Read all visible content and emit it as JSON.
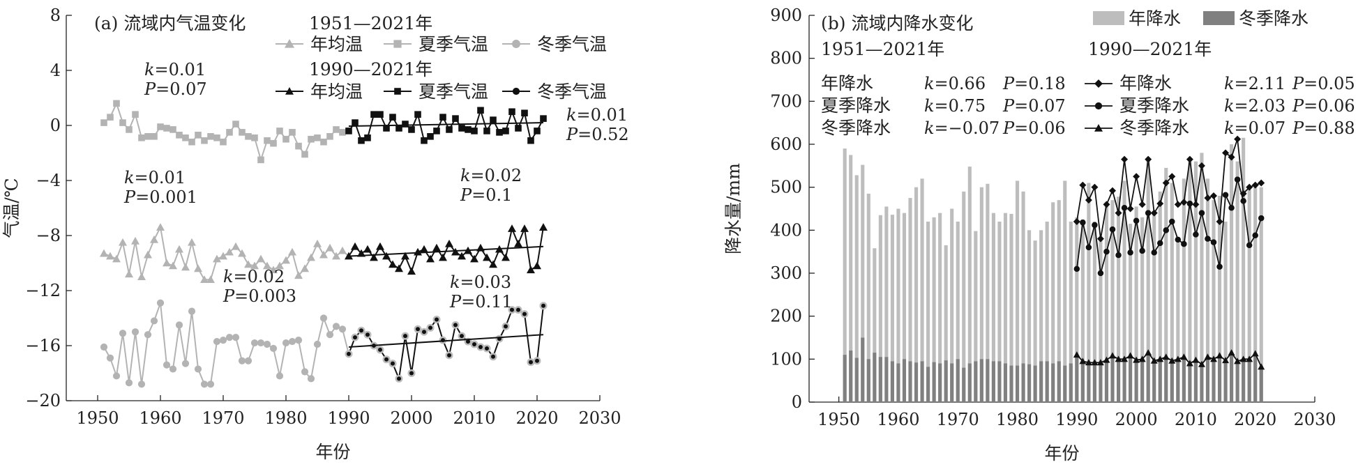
{
  "chart_data": [
    {
      "type": "line",
      "title": "(a) 流域内气温变化",
      "xlabel": "年份",
      "ylabel": "气温/℃",
      "xlim": [
        1945,
        2030
      ],
      "ylim": [
        -20,
        8
      ],
      "xticks": [
        1950,
        1960,
        1970,
        1980,
        1990,
        2000,
        2010,
        2020,
        2030
      ],
      "yticks": [
        8,
        4,
        0,
        -4,
        -8,
        -12,
        -16,
        -20
      ],
      "ytick_labels": [
        "8",
        "4",
        "0",
        "−4",
        "−8",
        "−12",
        "−16",
        "−20"
      ],
      "legend_period1": "1951—2021年",
      "legend_period2": "1990—2021年",
      "colors": {
        "period1": "#b3b3b3",
        "period2": "#111111",
        "trend": "#111111"
      },
      "series": [
        {
          "name": "年均温",
          "marker": "triangle",
          "x": [
            1951,
            1952,
            1953,
            1954,
            1955,
            1956,
            1957,
            1958,
            1959,
            1960,
            1961,
            1962,
            1963,
            1964,
            1965,
            1966,
            1967,
            1968,
            1969,
            1970,
            1971,
            1972,
            1973,
            1974,
            1975,
            1976,
            1977,
            1978,
            1979,
            1980,
            1981,
            1982,
            1983,
            1984,
            1985,
            1986,
            1987,
            1988,
            1989,
            1990,
            1991,
            1992,
            1993,
            1994,
            1995,
            1996,
            1997,
            1998,
            1999,
            2000,
            2001,
            2002,
            2003,
            2004,
            2005,
            2006,
            2007,
            2008,
            2009,
            2010,
            2011,
            2012,
            2013,
            2014,
            2015,
            2016,
            2017,
            2018,
            2019,
            2020,
            2021
          ],
          "values": [
            -9.3,
            -9.5,
            -9.7,
            -8.5,
            -10.8,
            -8.4,
            -11,
            -9.4,
            -8.3,
            -7.4,
            -10,
            -10.2,
            -9,
            -10.3,
            -8.5,
            -10.4,
            -11.2,
            -11.2,
            -9.7,
            -9.5,
            -9.2,
            -8.8,
            -9.3,
            -10.1,
            -10.2,
            -9.7,
            -10.2,
            -10.5,
            -10.2,
            -9.8,
            -9.2,
            -10.9,
            -10.4,
            -9.6,
            -8.6,
            -9.4,
            -8.9,
            -9.5,
            -9.1,
            -9.5,
            -8.8,
            -9.3,
            -9,
            -9.6,
            -8.8,
            -9.5,
            -10.1,
            -10.4,
            -9.5,
            -10.6,
            -9.2,
            -9,
            -9.7,
            -8.9,
            -9.6,
            -8.6,
            -9.2,
            -9.5,
            -9.1,
            -9.7,
            -8.9,
            -9.6,
            -10.1,
            -9,
            -9.6,
            -7.5,
            -8.6,
            -7.5,
            -10.5,
            -10.2,
            -7.4
          ]
        },
        {
          "name": "夏季气温",
          "marker": "square",
          "x": [
            1951,
            1952,
            1953,
            1954,
            1955,
            1956,
            1957,
            1958,
            1959,
            1960,
            1961,
            1962,
            1963,
            1964,
            1965,
            1966,
            1967,
            1968,
            1969,
            1970,
            1971,
            1972,
            1973,
            1974,
            1975,
            1976,
            1977,
            1978,
            1979,
            1980,
            1981,
            1982,
            1983,
            1984,
            1985,
            1986,
            1987,
            1988,
            1989,
            1990,
            1991,
            1992,
            1993,
            1994,
            1995,
            1996,
            1997,
            1998,
            1999,
            2000,
            2001,
            2002,
            2003,
            2004,
            2005,
            2006,
            2007,
            2008,
            2009,
            2010,
            2011,
            2012,
            2013,
            2014,
            2015,
            2016,
            2017,
            2018,
            2019,
            2020,
            2021
          ],
          "values": [
            0.2,
            0.6,
            1.6,
            0.2,
            -0.3,
            0.8,
            -0.9,
            -0.8,
            -0.8,
            -0.1,
            -0.2,
            -0.3,
            -0.7,
            -0.9,
            -1.2,
            -0.7,
            -1.1,
            -0.8,
            -0.9,
            -1.2,
            -0.5,
            0.1,
            -0.5,
            -0.8,
            -0.9,
            -2.5,
            -1.1,
            -1.3,
            -0.4,
            -1,
            -0.5,
            -1.5,
            -2.1,
            -1.0,
            -0.9,
            -1.2,
            -0.8,
            -0.3,
            -0.5,
            -0.4,
            0.2,
            -1.1,
            -0.9,
            0.8,
            0.8,
            -0.2,
            0.6,
            -0.2,
            0.1,
            -0.3,
            0.8,
            -1.1,
            -0.8,
            -0.4,
            0.6,
            -0.3,
            0.5,
            -0.2,
            -0.3,
            -0.4,
            1.1,
            -0.4,
            0.4,
            -0.5,
            -0.4,
            1,
            -0.2,
            0.9,
            -1.1,
            -0.4,
            0.5
          ]
        },
        {
          "name": "冬季气温",
          "marker": "circle",
          "x": [
            1951,
            1952,
            1953,
            1954,
            1955,
            1956,
            1957,
            1958,
            1959,
            1960,
            1961,
            1962,
            1963,
            1964,
            1965,
            1966,
            1967,
            1968,
            1969,
            1970,
            1971,
            1972,
            1973,
            1974,
            1975,
            1976,
            1977,
            1978,
            1979,
            1980,
            1981,
            1982,
            1983,
            1984,
            1985,
            1986,
            1987,
            1988,
            1989,
            1990,
            1991,
            1992,
            1993,
            1994,
            1995,
            1996,
            1997,
            1998,
            1999,
            2000,
            2001,
            2002,
            2003,
            2004,
            2005,
            2006,
            2007,
            2008,
            2009,
            2010,
            2011,
            2012,
            2013,
            2014,
            2015,
            2016,
            2017,
            2018,
            2019,
            2020,
            2021
          ],
          "values": [
            -16.1,
            -16.9,
            -18.2,
            -15.1,
            -18.7,
            -15,
            -18.8,
            -15.2,
            -14.2,
            -12.9,
            -17.4,
            -17.7,
            -14.5,
            -17.3,
            -13.5,
            -17.7,
            -18.8,
            -18.8,
            -15.7,
            -15.6,
            -15.4,
            -15.4,
            -17.1,
            -17.1,
            -15.8,
            -15.8,
            -15.9,
            -16.2,
            -18.2,
            -15.8,
            -15.7,
            -15.6,
            -17.9,
            -18.4,
            -15.9,
            -14,
            -15.2,
            -14.6,
            -14.8,
            -16.6,
            -15.4,
            -14.9,
            -15.2,
            -16,
            -16.3,
            -17,
            -17.3,
            -18.4,
            -15.3,
            -18,
            -14.8,
            -15,
            -14.7,
            -14.1,
            -15.6,
            -16.7,
            -14.5,
            -15.3,
            -15.7,
            -15.9,
            -16.1,
            -16.2,
            -16.8,
            -15.5,
            -14.6,
            -13.4,
            -13.4,
            -13.7,
            -17.2,
            -17.1,
            -13.1
          ]
        }
      ],
      "trend_lines": [
        {
          "x": [
            1990,
            2021
          ],
          "y": [
            -0.05,
            0.2
          ]
        },
        {
          "x": [
            1990,
            2021
          ],
          "y": [
            -9.5,
            -8.8
          ]
        },
        {
          "x": [
            1990,
            2021
          ],
          "y": [
            -16.1,
            -15.2
          ]
        }
      ],
      "annotations": [
        {
          "k_label": "k",
          "k_text": "=0.01",
          "p_label": "P",
          "p_text": "=0.07"
        },
        {
          "k_label": "k",
          "k_text": "=0.01",
          "p_label": "P",
          "p_text": "=0.52"
        },
        {
          "k_label": "k",
          "k_text": "=0.01",
          "p_label": "P",
          "p_text": "=0.001"
        },
        {
          "k_label": "k",
          "k_text": "=0.02",
          "p_label": "P",
          "p_text": "=0.1"
        },
        {
          "k_label": "k",
          "k_text": "=0.02",
          "p_label": "P",
          "p_text": "=0.003"
        },
        {
          "k_label": "k",
          "k_text": "=0.03",
          "p_label": "P",
          "p_text": "=0.11"
        }
      ]
    },
    {
      "type": "bar",
      "title": "(b) 流域内降水变化",
      "xlabel": "年份",
      "ylabel": "降水量/mm",
      "xlim": [
        1945,
        2030
      ],
      "ylim": [
        0,
        900
      ],
      "xticks": [
        1950,
        1960,
        1970,
        1980,
        1990,
        2000,
        2010,
        2020,
        2030
      ],
      "yticks": [
        0,
        100,
        200,
        300,
        400,
        500,
        600,
        700,
        800,
        900
      ],
      "legend_period1": "1951—2021年",
      "legend_period2": "1990—2021年",
      "colors": {
        "annual_bar": "#bdbdbd",
        "winter_bar": "#808080",
        "line": "#111111"
      },
      "bar_legend": [
        "年降水",
        "冬季降水"
      ],
      "years": [
        1951,
        1952,
        1953,
        1954,
        1955,
        1956,
        1957,
        1958,
        1959,
        1960,
        1961,
        1962,
        1963,
        1964,
        1965,
        1966,
        1967,
        1968,
        1969,
        1970,
        1971,
        1972,
        1973,
        1974,
        1975,
        1976,
        1977,
        1978,
        1979,
        1980,
        1981,
        1982,
        1983,
        1984,
        1985,
        1986,
        1987,
        1988,
        1989,
        1990,
        1991,
        1992,
        1993,
        1994,
        1995,
        1996,
        1997,
        1998,
        1999,
        2000,
        2001,
        2002,
        2003,
        2004,
        2005,
        2006,
        2007,
        2008,
        2009,
        2010,
        2011,
        2012,
        2013,
        2014,
        2015,
        2016,
        2017,
        2018,
        2019,
        2020,
        2021
      ],
      "annual_precip": [
        590,
        575,
        528,
        552,
        485,
        358,
        435,
        455,
        436,
        450,
        440,
        475,
        500,
        520,
        420,
        430,
        440,
        365,
        450,
        420,
        490,
        548,
        398,
        500,
        508,
        440,
        420,
        440,
        438,
        515,
        490,
        400,
        376,
        400,
        420,
        465,
        470,
        515,
        420,
        430,
        425,
        510,
        420,
        385,
        460,
        470,
        478,
        515,
        415,
        455,
        430,
        565,
        440,
        490,
        545,
        510,
        375,
        520,
        560,
        560,
        580,
        520,
        470,
        480,
        420,
        600,
        560,
        615,
        495,
        505,
        500
      ],
      "winter_precip": [
        110,
        120,
        103,
        150,
        100,
        115,
        105,
        105,
        95,
        90,
        100,
        95,
        92,
        95,
        82,
        93,
        90,
        97,
        90,
        100,
        80,
        90,
        95,
        100,
        100,
        95,
        95,
        90,
        85,
        85,
        90,
        88,
        85,
        95,
        95,
        90,
        95,
        85,
        90,
        110,
        95,
        92,
        92,
        92,
        98,
        108,
        100,
        100,
        108,
        98,
        100,
        115,
        96,
        100,
        105,
        96,
        100,
        105,
        90,
        98,
        88,
        105,
        100,
        108,
        97,
        115,
        95,
        100,
        100,
        113,
        82
      ],
      "series": [
        {
          "name": "年降水",
          "marker": "diamond",
          "x": [
            1990,
            1991,
            1992,
            1993,
            1994,
            1995,
            1996,
            1997,
            1998,
            1999,
            2000,
            2001,
            2002,
            2003,
            2004,
            2005,
            2006,
            2007,
            2008,
            2009,
            2010,
            2011,
            2012,
            2013,
            2014,
            2015,
            2016,
            2017,
            2018,
            2019,
            2020,
            2021
          ],
          "values": [
            420,
            505,
            470,
            500,
            380,
            460,
            492,
            440,
            565,
            450,
            525,
            460,
            565,
            440,
            462,
            510,
            525,
            460,
            465,
            565,
            460,
            550,
            475,
            480,
            420,
            580,
            570,
            612,
            485,
            500,
            505,
            510
          ]
        },
        {
          "name": "夏季降水",
          "marker": "circle",
          "x": [
            1990,
            1991,
            1992,
            1993,
            1994,
            1995,
            1996,
            1997,
            1998,
            1999,
            2000,
            2001,
            2002,
            2003,
            2004,
            2005,
            2006,
            2007,
            2008,
            2009,
            2010,
            2011,
            2012,
            2013,
            2014,
            2015,
            2016,
            2017,
            2018,
            2019,
            2020,
            2021
          ],
          "values": [
            310,
            418,
            360,
            412,
            300,
            350,
            402,
            342,
            452,
            348,
            422,
            352,
            440,
            348,
            370,
            400,
            420,
            378,
            368,
            462,
            390,
            440,
            380,
            372,
            315,
            482,
            452,
            518,
            468,
            365,
            388,
            428
          ]
        },
        {
          "name": "冬季降水",
          "marker": "triangle",
          "x": [
            1990,
            1991,
            1992,
            1993,
            1994,
            1995,
            1996,
            1997,
            1998,
            1999,
            2000,
            2001,
            2002,
            2003,
            2004,
            2005,
            2006,
            2007,
            2008,
            2009,
            2010,
            2011,
            2012,
            2013,
            2014,
            2015,
            2016,
            2017,
            2018,
            2019,
            2020,
            2021
          ],
          "values": [
            110,
            95,
            92,
            92,
            92,
            98,
            108,
            100,
            100,
            108,
            98,
            100,
            115,
            96,
            100,
            105,
            96,
            100,
            105,
            90,
            98,
            88,
            105,
            100,
            108,
            97,
            115,
            95,
            100,
            100,
            113,
            82
          ]
        }
      ],
      "stats_1951_2021": [
        {
          "name": "年降水",
          "k": "=0.66",
          "P": "=0.18"
        },
        {
          "name": "夏季降水",
          "k": "=0.75",
          "P": "=0.07"
        },
        {
          "name": "冬季降水",
          "k": "=−0.07",
          "P": "=0.06"
        }
      ],
      "stats_1990_2021": [
        {
          "name": "年降水",
          "k": "=2.11",
          "P": "=0.05"
        },
        {
          "name": "夏季降水",
          "k": "=2.03",
          "P": "=0.06"
        },
        {
          "name": "冬季降水",
          "k": "=0.07",
          "P": "=0.88"
        }
      ]
    }
  ]
}
